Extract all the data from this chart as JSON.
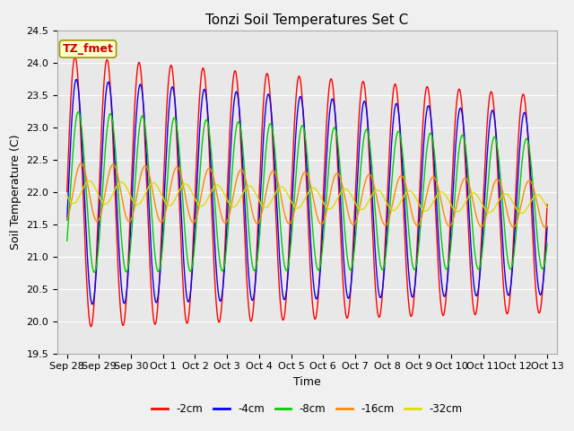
{
  "title": "Tonzi Soil Temperatures Set C",
  "xlabel": "Time",
  "ylabel": "Soil Temperature (C)",
  "ylim": [
    19.5,
    24.5
  ],
  "legend_label": "TZ_fmet",
  "series": [
    {
      "label": "-2cm",
      "color": "#ff0000",
      "amplitude": 2.1,
      "phase": 0.0,
      "mean": 22.0,
      "damping": 0.0
    },
    {
      "label": "-4cm",
      "color": "#0000ff",
      "amplitude": 1.75,
      "phase": 0.25,
      "mean": 22.0,
      "damping": 0.0
    },
    {
      "label": "-8cm",
      "color": "#00cc00",
      "amplitude": 1.25,
      "phase": 0.65,
      "mean": 22.0,
      "damping": 0.0
    },
    {
      "label": "-16cm",
      "color": "#ff8800",
      "amplitude": 0.45,
      "phase": 1.2,
      "mean": 22.0,
      "damping": 0.0
    },
    {
      "label": "-32cm",
      "color": "#dddd00",
      "amplitude": 0.18,
      "phase": 2.8,
      "mean": 22.0,
      "damping": 0.0
    }
  ],
  "xtick_labels": [
    "Sep 28",
    "Sep 29",
    "Sep 30",
    "Oct 1",
    "Oct 2",
    "Oct 3",
    "Oct 4",
    "Oct 5",
    "Oct 6",
    "Oct 7",
    "Oct 8",
    "Oct 9",
    "Oct 10",
    "Oct 11",
    "Oct 12",
    "Oct 13"
  ],
  "xtick_positions": [
    0,
    1,
    2,
    3,
    4,
    5,
    6,
    7,
    8,
    9,
    10,
    11,
    12,
    13,
    14,
    15
  ],
  "ytick_labels": [
    "19.5",
    "20.0",
    "20.5",
    "21.0",
    "21.5",
    "22.0",
    "22.5",
    "23.0",
    "23.5",
    "24.0",
    "24.5"
  ],
  "ytick_values": [
    19.5,
    20.0,
    20.5,
    21.0,
    21.5,
    22.0,
    22.5,
    23.0,
    23.5,
    24.0,
    24.5
  ],
  "background_color": "#e8e8e8",
  "grid_color": "#ffffff",
  "fig_facecolor": "#f0f0f0",
  "title_fontsize": 11,
  "axis_label_fontsize": 9,
  "tick_fontsize": 8
}
